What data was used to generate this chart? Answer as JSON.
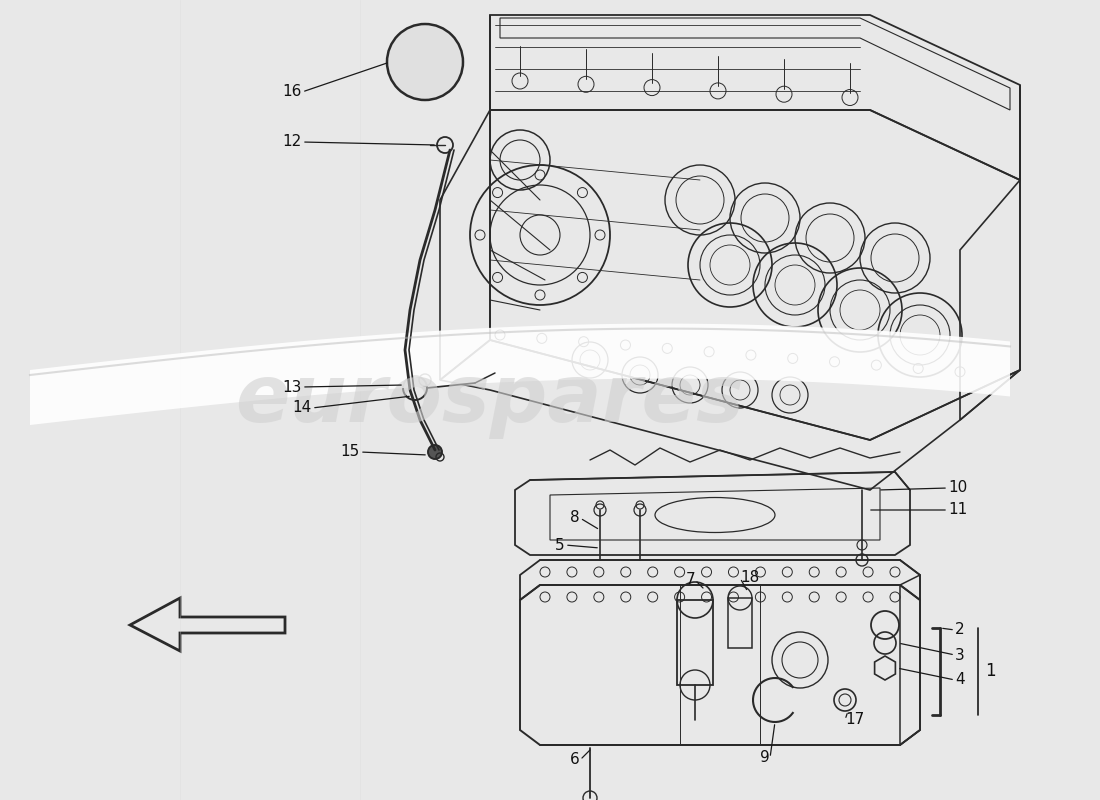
{
  "background_color": "#e8e8e8",
  "fig_width": 11.0,
  "fig_height": 8.0,
  "watermark_text": "eurospares",
  "arrow_color": "#1a1a1a",
  "text_color": "#111111",
  "line_color": "#2a2a2a",
  "watermark_color": "#d0d0d0",
  "watermark_fontsize": 58,
  "watermark_alpha": 0.6,
  "swoosh_color": "#cccccc",
  "swoosh_alpha": 0.85,
  "part_numbers": [
    "1",
    "2",
    "3",
    "4",
    "5",
    "6",
    "7",
    "8",
    "9",
    "10",
    "11",
    "12",
    "13",
    "14",
    "15",
    "16",
    "17",
    "18"
  ]
}
